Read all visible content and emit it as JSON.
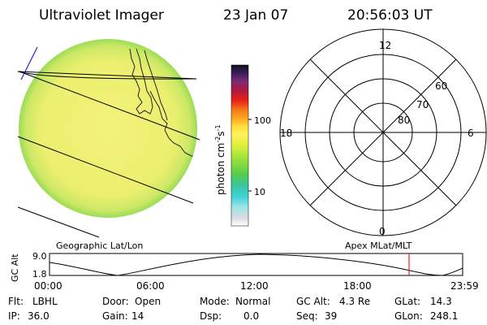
{
  "header": {
    "title": "Ultraviolet Imager",
    "date": "23 Jan 07",
    "time": "20:56:03 UT"
  },
  "colorbar": {
    "label": "photon cm",
    "label_exp1": "-2",
    "label_mid": "s",
    "label_exp2": "-1",
    "tick_100": "100",
    "tick_10": "10"
  },
  "polar": {
    "mlt_top": "12",
    "mlt_left": "18",
    "mlt_right": "6",
    "mlt_bottom": "0",
    "lat_60": "60",
    "lat_70": "70",
    "lat_80": "80"
  },
  "panels": {
    "left_caption": "Geographic Lat/Lon",
    "right_caption": "Apex  MLat/MLT"
  },
  "orbit": {
    "ylabel": "GC Alt",
    "y_top": "9.0",
    "y_bottom": "1.8",
    "x_ticks": [
      "00:00",
      "06:00",
      "12:00",
      "18:00",
      "23:59"
    ]
  },
  "status": {
    "flt_label": "Flt:",
    "flt_value": "LBHL",
    "ip_label": "IP:",
    "ip_value": "36.0",
    "door_label": "Door:",
    "door_value": "Open",
    "gain_label": "Gain:",
    "gain_value": "14",
    "mode_label": "Mode:",
    "mode_value": "Normal",
    "dsp_label": "Dsp:",
    "dsp_value": "0.0",
    "gcalt_label": "GC Alt:",
    "gcalt_value": "4.3 Re",
    "seq_label": "Seq:",
    "seq_value": "39",
    "glat_label": "GLat:",
    "glat_value": "14.3",
    "glon_label": "GLon:",
    "glon_value": "248.1"
  },
  "colors": {
    "disk_fill": "#eef074",
    "disk_rim": "#a8e05a",
    "current_time_marker": "#e8201a"
  }
}
